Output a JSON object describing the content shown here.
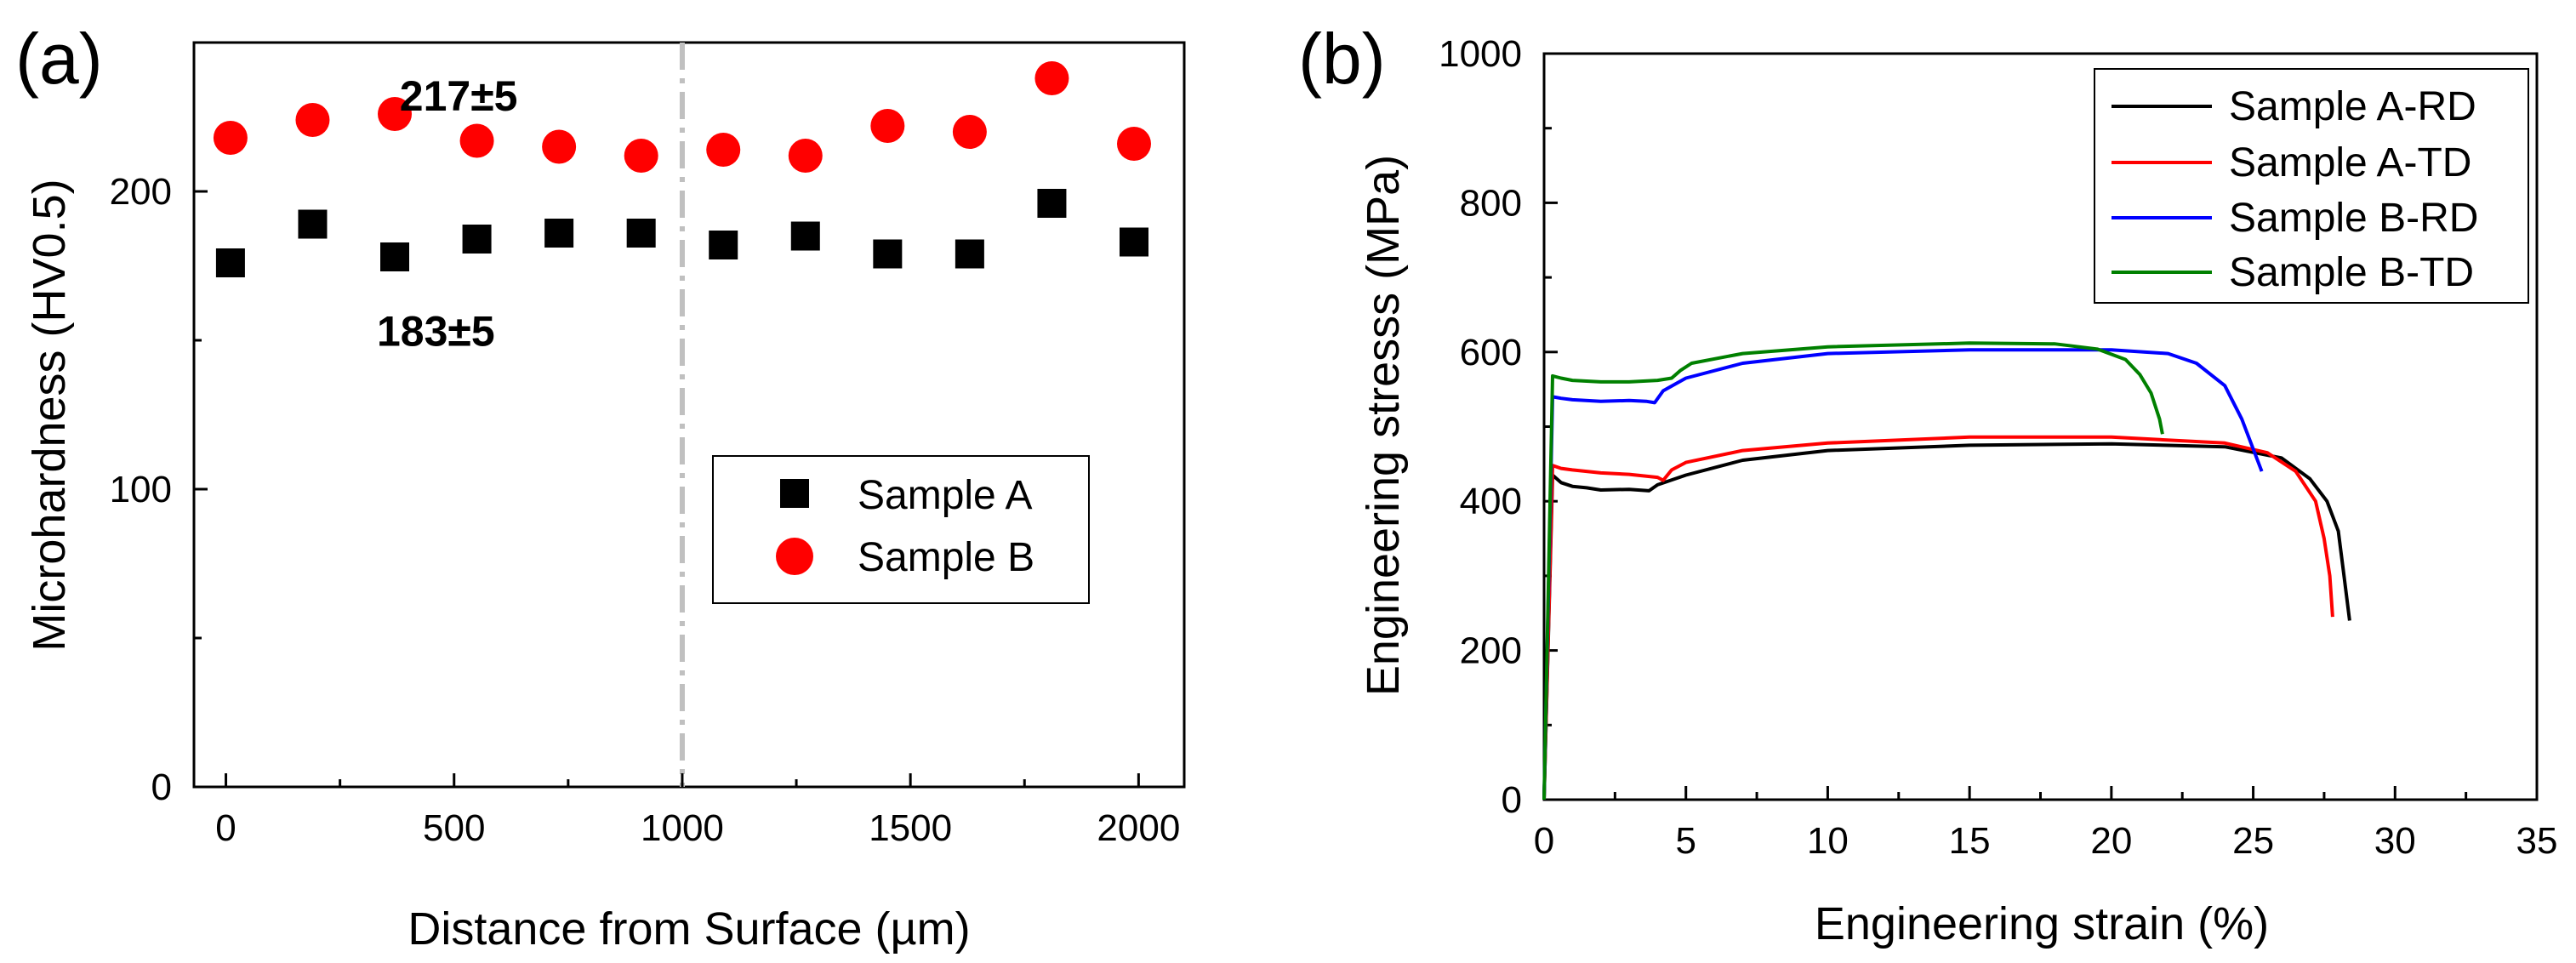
{
  "chart_data": [
    {
      "panel": "(a)",
      "type": "scatter",
      "xlabel": "Distance from Surface (µm)",
      "ylabel": "Microhardness (HV0.5)",
      "xlim": [
        -70,
        2100
      ],
      "ylim": [
        0,
        250
      ],
      "xticks": [
        0,
        500,
        1000,
        1500,
        2000
      ],
      "yticks": [
        0,
        100,
        200
      ],
      "grid": false,
      "legend_position": "bottom-right",
      "vertical_line": {
        "x": 1000,
        "style": "dash-dot",
        "color": "#c0c0c0"
      },
      "series": [
        {
          "name": "Sample A",
          "marker": "square",
          "color": "#000000",
          "x": [
            10,
            190,
            370,
            550,
            730,
            910,
            1090,
            1270,
            1450,
            1630,
            1810,
            1990
          ],
          "y": [
            176,
            189,
            178,
            184,
            186,
            186,
            182,
            185,
            179,
            179,
            196,
            183
          ]
        },
        {
          "name": "Sample B",
          "marker": "circle",
          "color": "#ff0000",
          "x": [
            10,
            190,
            370,
            550,
            730,
            910,
            1090,
            1270,
            1450,
            1630,
            1810,
            1990
          ],
          "y": [
            218,
            224,
            226,
            217,
            215,
            212,
            214,
            212,
            222,
            220,
            238,
            216
          ]
        }
      ],
      "annotations": [
        {
          "text": "217±5",
          "x": 510,
          "y": 232,
          "color": "#e00000"
        },
        {
          "text": "183±5",
          "x": 460,
          "y": 153,
          "color": "#000000"
        }
      ]
    },
    {
      "panel": "(b)",
      "type": "line",
      "xlabel": "Engineering strain (%)",
      "ylabel": "Engineering stresss (MPa)",
      "xlim": [
        0,
        35
      ],
      "ylim": [
        0,
        1000
      ],
      "xticks": [
        0,
        5,
        10,
        15,
        20,
        25,
        30,
        35
      ],
      "yticks": [
        0,
        200,
        400,
        600,
        800,
        1000
      ],
      "grid": false,
      "legend_position": "top-right",
      "series": [
        {
          "name": "Sample A-RD",
          "color": "#000000",
          "x": [
            0,
            0.3,
            0.6,
            1,
            1.5,
            2,
            3,
            3.7,
            4,
            5,
            7,
            10,
            15,
            20,
            24,
            26,
            27,
            27.6,
            28,
            28.2,
            28.4
          ],
          "y": [
            0,
            435,
            425,
            420,
            418,
            415,
            416,
            414,
            422,
            435,
            455,
            468,
            475,
            477,
            473,
            458,
            430,
            400,
            360,
            300,
            240
          ]
        },
        {
          "name": "Sample A-TD",
          "color": "#ff0000",
          "x": [
            0,
            0.3,
            0.6,
            1,
            2,
            3,
            4,
            4.2,
            4.5,
            5,
            7,
            10,
            15,
            20,
            24,
            25.5,
            26.5,
            27.2,
            27.5,
            27.7,
            27.8
          ],
          "y": [
            0,
            448,
            444,
            442,
            438,
            436,
            432,
            428,
            442,
            452,
            468,
            478,
            486,
            486,
            478,
            465,
            440,
            400,
            350,
            300,
            245
          ]
        },
        {
          "name": "Sample B-RD",
          "color": "#0000ff",
          "x": [
            0,
            0.3,
            0.6,
            1,
            2,
            3,
            3.6,
            3.9,
            4.2,
            5,
            7,
            10,
            15,
            20,
            22,
            23,
            24,
            24.6,
            25,
            25.3
          ],
          "y": [
            0,
            540,
            538,
            536,
            534,
            535,
            534,
            532,
            548,
            565,
            585,
            598,
            603,
            603,
            598,
            585,
            555,
            510,
            470,
            440
          ]
        },
        {
          "name": "Sample B-TD",
          "color": "#008000",
          "x": [
            0,
            0.3,
            0.6,
            1,
            2,
            3,
            4,
            4.5,
            4.8,
            5.2,
            7,
            10,
            15,
            18,
            19.5,
            20.5,
            21,
            21.4,
            21.7,
            21.8
          ],
          "y": [
            0,
            568,
            565,
            562,
            560,
            560,
            562,
            565,
            575,
            585,
            598,
            607,
            612,
            611,
            604,
            590,
            570,
            545,
            510,
            490
          ]
        }
      ]
    }
  ]
}
